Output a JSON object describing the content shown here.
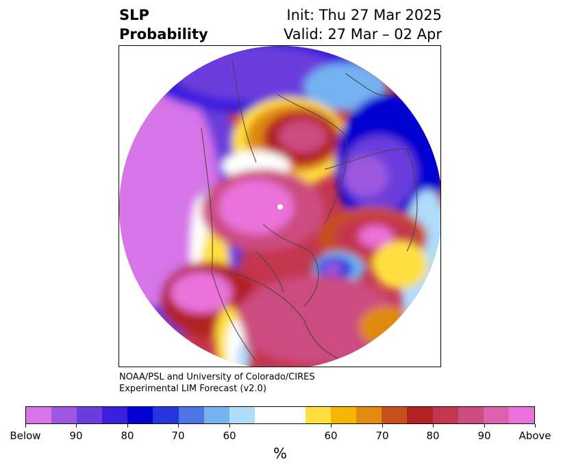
{
  "title": {
    "variable_line1": "SLP",
    "variable_line2": "Probability",
    "init": "Init: Thu 27 Mar 2025",
    "valid": "Valid: 27 Mar – 02 Apr"
  },
  "credit": {
    "line1": "NOAA/PSL and University of Colorado/CIRES",
    "line2": "Experimental LIM Forecast (v2.0)"
  },
  "colorbar": {
    "unit": "%",
    "colors": [
      "#d674e8",
      "#9e58e0",
      "#6b3ddc",
      "#3a1fdc",
      "#0000d0",
      "#2636dc",
      "#4c75e6",
      "#74b2f2",
      "#aedcfa",
      "#ffffff",
      "#ffffff",
      "#ffe040",
      "#f4b600",
      "#e08a10",
      "#c8501c",
      "#b22222",
      "#c4364e",
      "#cc4c80",
      "#dc62b0",
      "#ea72da"
    ],
    "labels": [
      "Below",
      "90",
      "80",
      "70",
      "60",
      "60",
      "70",
      "80",
      "90",
      "Above"
    ],
    "label_bins": [
      0,
      2,
      4,
      6,
      8,
      12,
      14,
      16,
      18,
      20
    ]
  },
  "map": {
    "projection": "north-polar-stereographic",
    "colors": {
      "below_strong": "#d674e8",
      "below_mid": "#6b3ddc",
      "below_weak": "#aedcfa",
      "neutral": "#ffffff",
      "above_weak": "#ffe040",
      "above_mid": "#b22222",
      "above_strong": "#ea72da"
    }
  }
}
